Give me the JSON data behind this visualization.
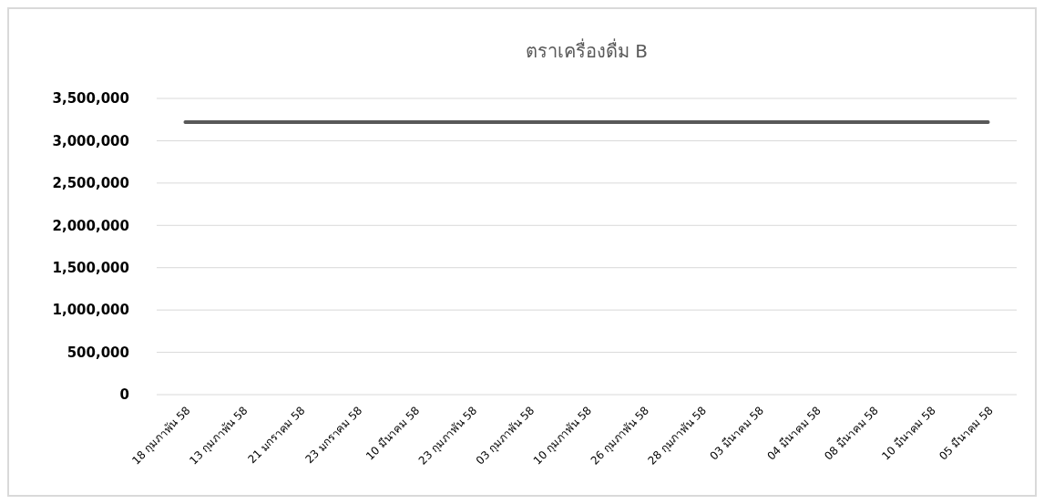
{
  "chart_data": {
    "type": "line",
    "title": "ตราเครื่องดื่ม B",
    "categories": [
      "18 กุมภาพัน 58",
      "13 กุมภาพัน 58",
      "21 มกราคม 58",
      "23 มกราคม 58",
      "10 มีนาคม 58",
      "23 กุมภาพัน 58",
      "03 กุมภาพัน 58",
      "10 กุมภาพัน 58",
      "26 กุมภาพัน 58",
      "28 กุมภาพัน 58",
      "03 มีนาคม 58",
      "04 มีนาคม 58",
      "08 มีนาคม 58",
      "10 มีนาคม 58",
      "05 มีนาคม 58"
    ],
    "series": [
      {
        "color": "#595959",
        "values": [
          3220000,
          3220000,
          3220000,
          3220000,
          3220000,
          3220000,
          3220000,
          3220000,
          3220000,
          3220000,
          3220000,
          3220000,
          3220000,
          3220000,
          3220000
        ]
      }
    ],
    "ylim": [
      0,
      3500000
    ],
    "yticks": [
      {
        "value": 0,
        "label": "0"
      },
      {
        "value": 500000,
        "label": "500,000"
      },
      {
        "value": 1000000,
        "label": "1,000,000"
      },
      {
        "value": 1500000,
        "label": "1,500,000"
      },
      {
        "value": 2000000,
        "label": "2,000,000"
      },
      {
        "value": 2500000,
        "label": "2,500,000"
      },
      {
        "value": 3000000,
        "label": "3,000,000"
      },
      {
        "value": 3500000,
        "label": "3,500,000"
      }
    ],
    "grid": "y",
    "marker": "none",
    "line_style": "solid"
  }
}
